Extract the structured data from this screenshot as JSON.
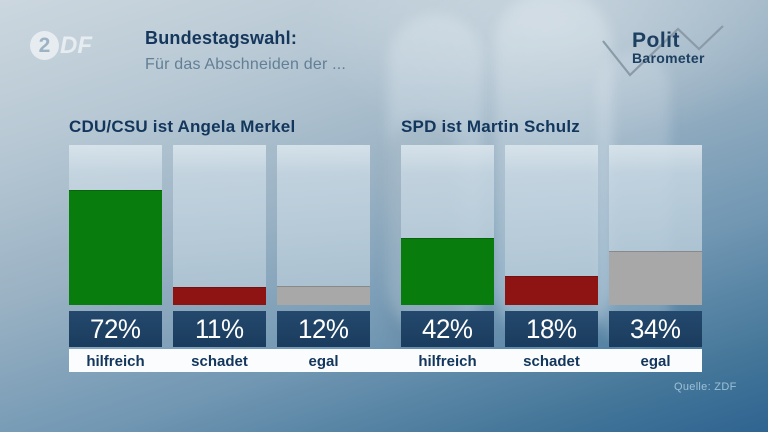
{
  "brand": {
    "zdf_circle": "2",
    "zdf_letters": "DF"
  },
  "header": {
    "title": "Bundestagswahl:",
    "subtitle": "Für das Abschneiden der ..."
  },
  "politbarometer": {
    "line1": "Polit",
    "line2": "Barometer"
  },
  "source": "Quelle: ZDF",
  "chart_data": {
    "type": "bar",
    "unit": "%",
    "ylim": [
      0,
      100
    ],
    "grid": false,
    "legend": false,
    "bar_colors": [
      "#087c0c",
      "#8e1414",
      "#a8a8a8"
    ],
    "groups": [
      {
        "title": "CDU/CSU ist Angela Merkel",
        "categories": [
          "hilfreich",
          "schadet",
          "egal"
        ],
        "values": [
          72,
          11,
          12
        ]
      },
      {
        "title": "SPD ist Martin Schulz",
        "categories": [
          "hilfreich",
          "schadet",
          "egal"
        ],
        "values": [
          42,
          18,
          34
        ]
      }
    ]
  }
}
